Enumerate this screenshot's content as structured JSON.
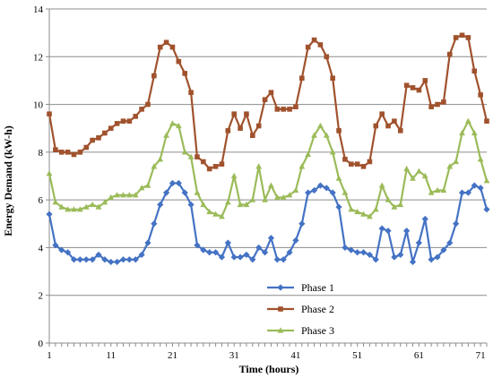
{
  "chart_data": {
    "type": "line",
    "xlabel": "Time (hours)",
    "ylabel": "Energy Demand (kW-h)",
    "xlim": [
      1,
      72
    ],
    "ylim": [
      0,
      14
    ],
    "xticks": [
      1,
      11,
      21,
      31,
      41,
      51,
      61,
      71
    ],
    "yticks": [
      0,
      2,
      4,
      6,
      8,
      10,
      12,
      14
    ],
    "grid": "horizontal",
    "legend_position": "bottom-right",
    "x": [
      1,
      2,
      3,
      4,
      5,
      6,
      7,
      8,
      9,
      10,
      11,
      12,
      13,
      14,
      15,
      16,
      17,
      18,
      19,
      20,
      21,
      22,
      23,
      24,
      25,
      26,
      27,
      28,
      29,
      30,
      31,
      32,
      33,
      34,
      35,
      36,
      37,
      38,
      39,
      40,
      41,
      42,
      43,
      44,
      45,
      46,
      47,
      48,
      49,
      50,
      51,
      52,
      53,
      54,
      55,
      56,
      57,
      58,
      59,
      60,
      61,
      62,
      63,
      64,
      65,
      66,
      67,
      68,
      69,
      70,
      71,
      72
    ],
    "series": [
      {
        "name": "Phase 1",
        "color": "#4472C4",
        "marker": "diamond",
        "values": [
          5.4,
          4.1,
          3.9,
          3.8,
          3.5,
          3.5,
          3.5,
          3.5,
          3.7,
          3.5,
          3.4,
          3.4,
          3.5,
          3.5,
          3.5,
          3.7,
          4.2,
          5.0,
          5.8,
          6.3,
          6.7,
          6.7,
          6.3,
          5.8,
          4.1,
          3.9,
          3.8,
          3.8,
          3.6,
          4.2,
          3.6,
          3.6,
          3.7,
          3.5,
          4.0,
          3.8,
          4.4,
          3.5,
          3.5,
          3.8,
          4.3,
          5.0,
          6.3,
          6.4,
          6.6,
          6.5,
          6.3,
          5.7,
          4.0,
          3.9,
          3.8,
          3.8,
          3.7,
          3.5,
          4.8,
          4.7,
          3.6,
          3.7,
          4.7,
          3.4,
          4.2,
          5.2,
          3.5,
          3.6,
          3.9,
          4.2,
          5.0,
          6.3,
          6.3,
          6.6,
          6.5,
          5.6
        ]
      },
      {
        "name": "Phase 2",
        "color": "#A0522D",
        "marker": "square",
        "values": [
          9.6,
          8.1,
          8.0,
          8.0,
          7.9,
          8.0,
          8.2,
          8.5,
          8.6,
          8.8,
          9.0,
          9.2,
          9.3,
          9.3,
          9.5,
          9.8,
          10.0,
          11.2,
          12.4,
          12.6,
          12.4,
          11.8,
          11.3,
          10.5,
          7.8,
          7.6,
          7.3,
          7.4,
          7.5,
          8.9,
          9.6,
          9.0,
          9.6,
          8.7,
          9.1,
          10.2,
          10.5,
          9.8,
          9.8,
          9.8,
          9.9,
          11.1,
          12.4,
          12.7,
          12.5,
          12.0,
          11.1,
          8.9,
          7.7,
          7.5,
          7.5,
          7.4,
          7.6,
          9.1,
          9.6,
          9.1,
          9.3,
          8.9,
          10.8,
          10.7,
          10.6,
          11.0,
          9.9,
          10.0,
          10.1,
          12.1,
          12.8,
          12.9,
          12.8,
          11.4,
          10.4,
          9.3
        ]
      },
      {
        "name": "Phase 3",
        "color": "#9BBB59",
        "marker": "triangle",
        "values": [
          7.1,
          5.9,
          5.7,
          5.6,
          5.6,
          5.6,
          5.7,
          5.8,
          5.7,
          5.9,
          6.1,
          6.2,
          6.2,
          6.2,
          6.2,
          6.5,
          6.6,
          7.4,
          7.7,
          8.7,
          9.2,
          9.1,
          8.0,
          7.8,
          6.3,
          5.8,
          5.5,
          5.4,
          5.3,
          5.9,
          7.0,
          5.8,
          5.8,
          6.0,
          7.4,
          6.0,
          6.6,
          6.1,
          6.1,
          6.2,
          6.4,
          7.4,
          7.9,
          8.7,
          9.1,
          8.7,
          8.0,
          6.9,
          6.3,
          5.6,
          5.5,
          5.4,
          5.3,
          5.6,
          6.6,
          6.0,
          5.7,
          5.8,
          7.3,
          6.9,
          7.2,
          7.0,
          6.3,
          6.4,
          6.4,
          7.4,
          7.6,
          8.8,
          9.3,
          8.8,
          7.7,
          6.8
        ]
      }
    ]
  }
}
